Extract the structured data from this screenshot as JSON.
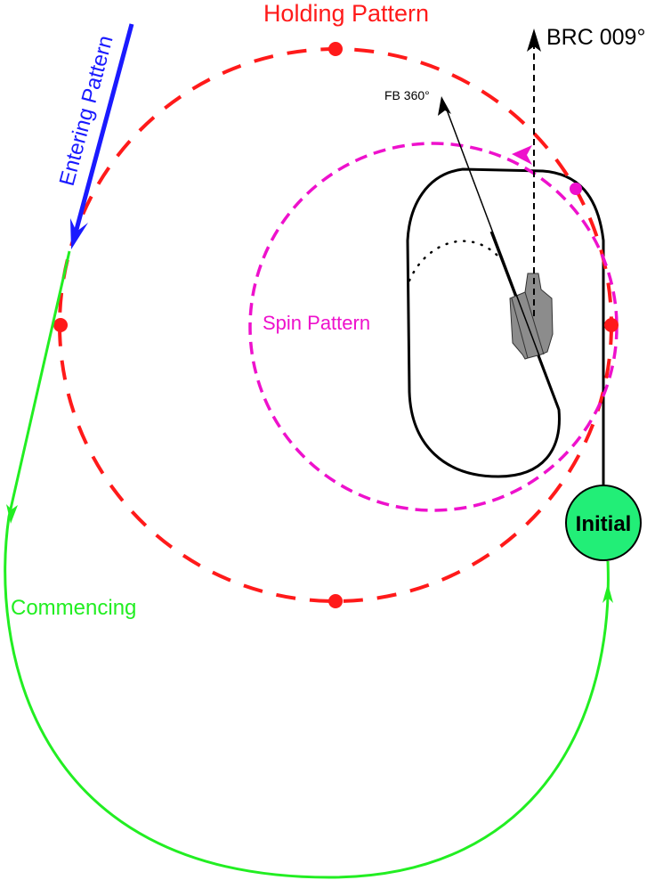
{
  "labels": {
    "holding": "Holding Pattern",
    "entering": "Entering Pattern",
    "spin": "Spin Pattern",
    "commencing": "Commencing",
    "initial": "Initial",
    "brc": "BRC 009°",
    "fb": "FB 360°"
  },
  "colors": {
    "holding": "#ff1a1a",
    "entering": "#1a1aff",
    "spin": "#ee11cc",
    "commencing": "#22ee22",
    "initial_fill": "#22ee77",
    "ship": "#8c8c8c"
  }
}
